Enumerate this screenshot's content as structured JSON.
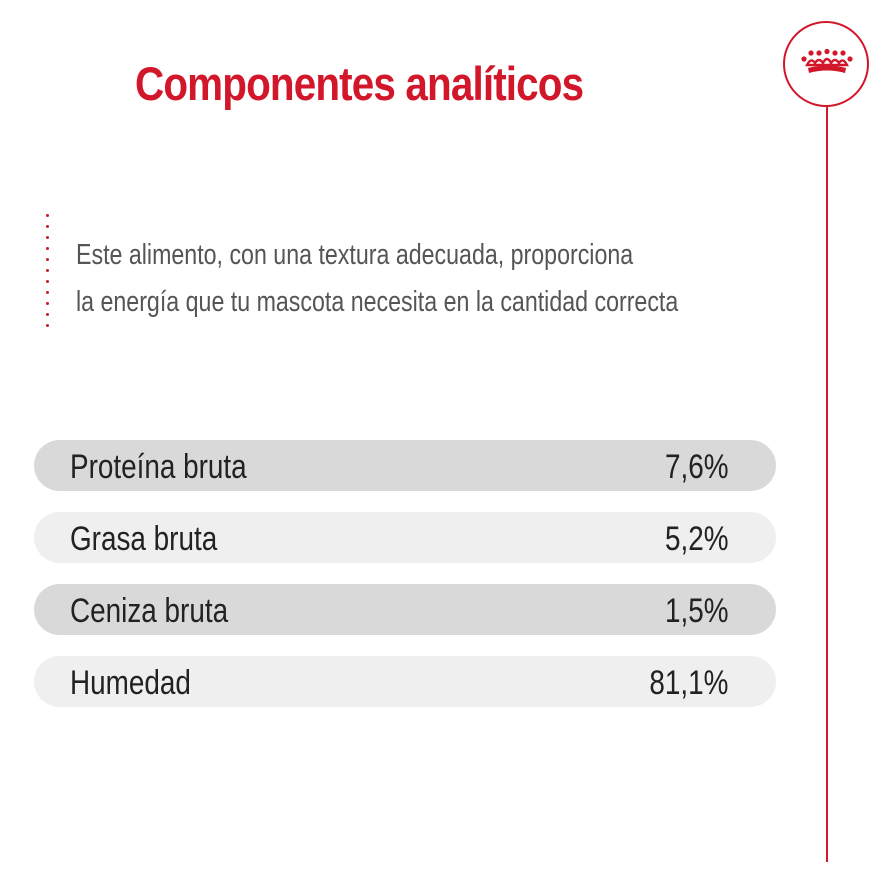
{
  "title": "Componentes analíticos",
  "description": {
    "line1": "Este alimento, con una textura adecuada, proporciona",
    "line2": "la energía que tu mascota necesita en la cantidad correcta"
  },
  "logo_icon": "crown-icon",
  "colors": {
    "accent": "#d2172b",
    "row_dark": "#d9d9d9",
    "row_light": "#efefef",
    "text": "#222222",
    "description_text": "#555555"
  },
  "components": [
    {
      "label": "Proteína bruta",
      "value": "7,6%"
    },
    {
      "label": "Grasa bruta",
      "value": "5,2%"
    },
    {
      "label": "Ceniza bruta",
      "value": "1,5%"
    },
    {
      "label": "Humedad",
      "value": "81,1%"
    }
  ]
}
